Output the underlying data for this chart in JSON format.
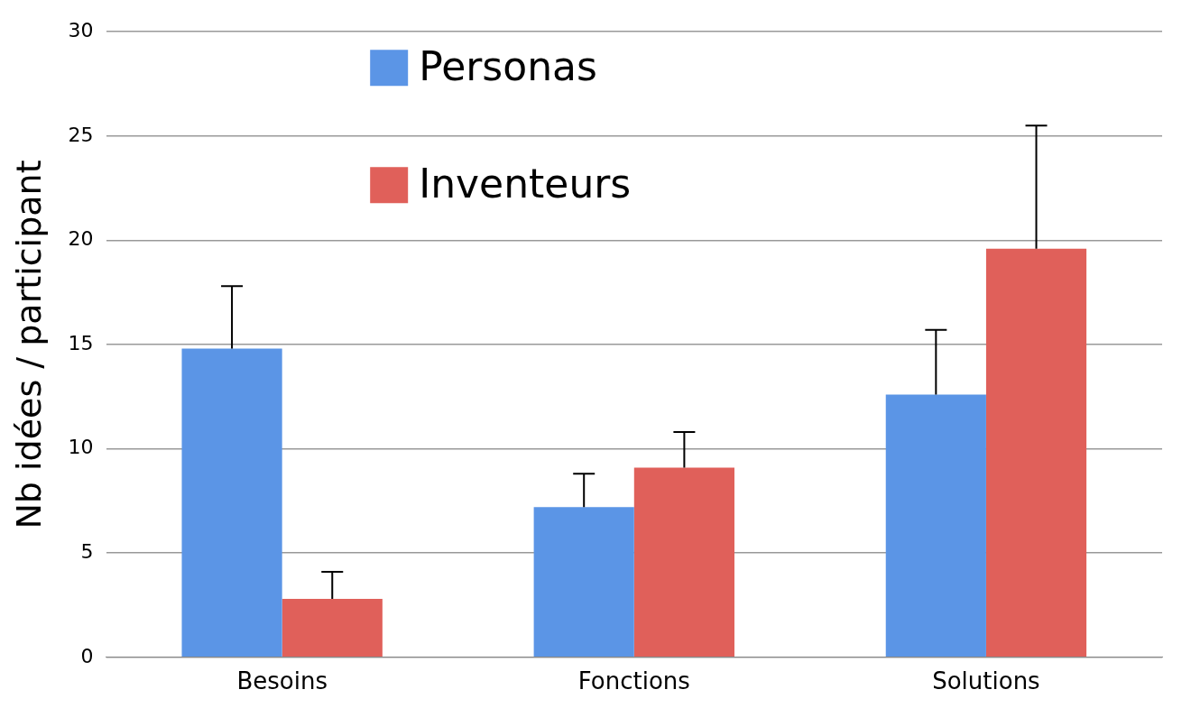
{
  "chart_data": {
    "type": "bar",
    "ylabel": "Nb idées / participant",
    "categories": [
      "Besoins",
      "Fonctions",
      "Solutions"
    ],
    "series": [
      {
        "name": "Personas",
        "color": "#5b95e6",
        "values": [
          14.8,
          7.2,
          12.6
        ],
        "errors": [
          [
            14.8,
            17.8
          ],
          [
            7.2,
            8.8
          ],
          [
            12.6,
            15.7
          ]
        ]
      },
      {
        "name": "Inventeurs",
        "color": "#e0605a",
        "values": [
          2.8,
          9.1,
          19.6
        ],
        "errors": [
          [
            2.8,
            4.1
          ],
          [
            9.1,
            10.8
          ],
          [
            19.6,
            25.5
          ]
        ]
      }
    ],
    "ylim": [
      0,
      30
    ],
    "yticks": [
      0,
      5,
      10,
      15,
      20,
      25,
      30
    ],
    "grid": "y",
    "legend": "top"
  }
}
